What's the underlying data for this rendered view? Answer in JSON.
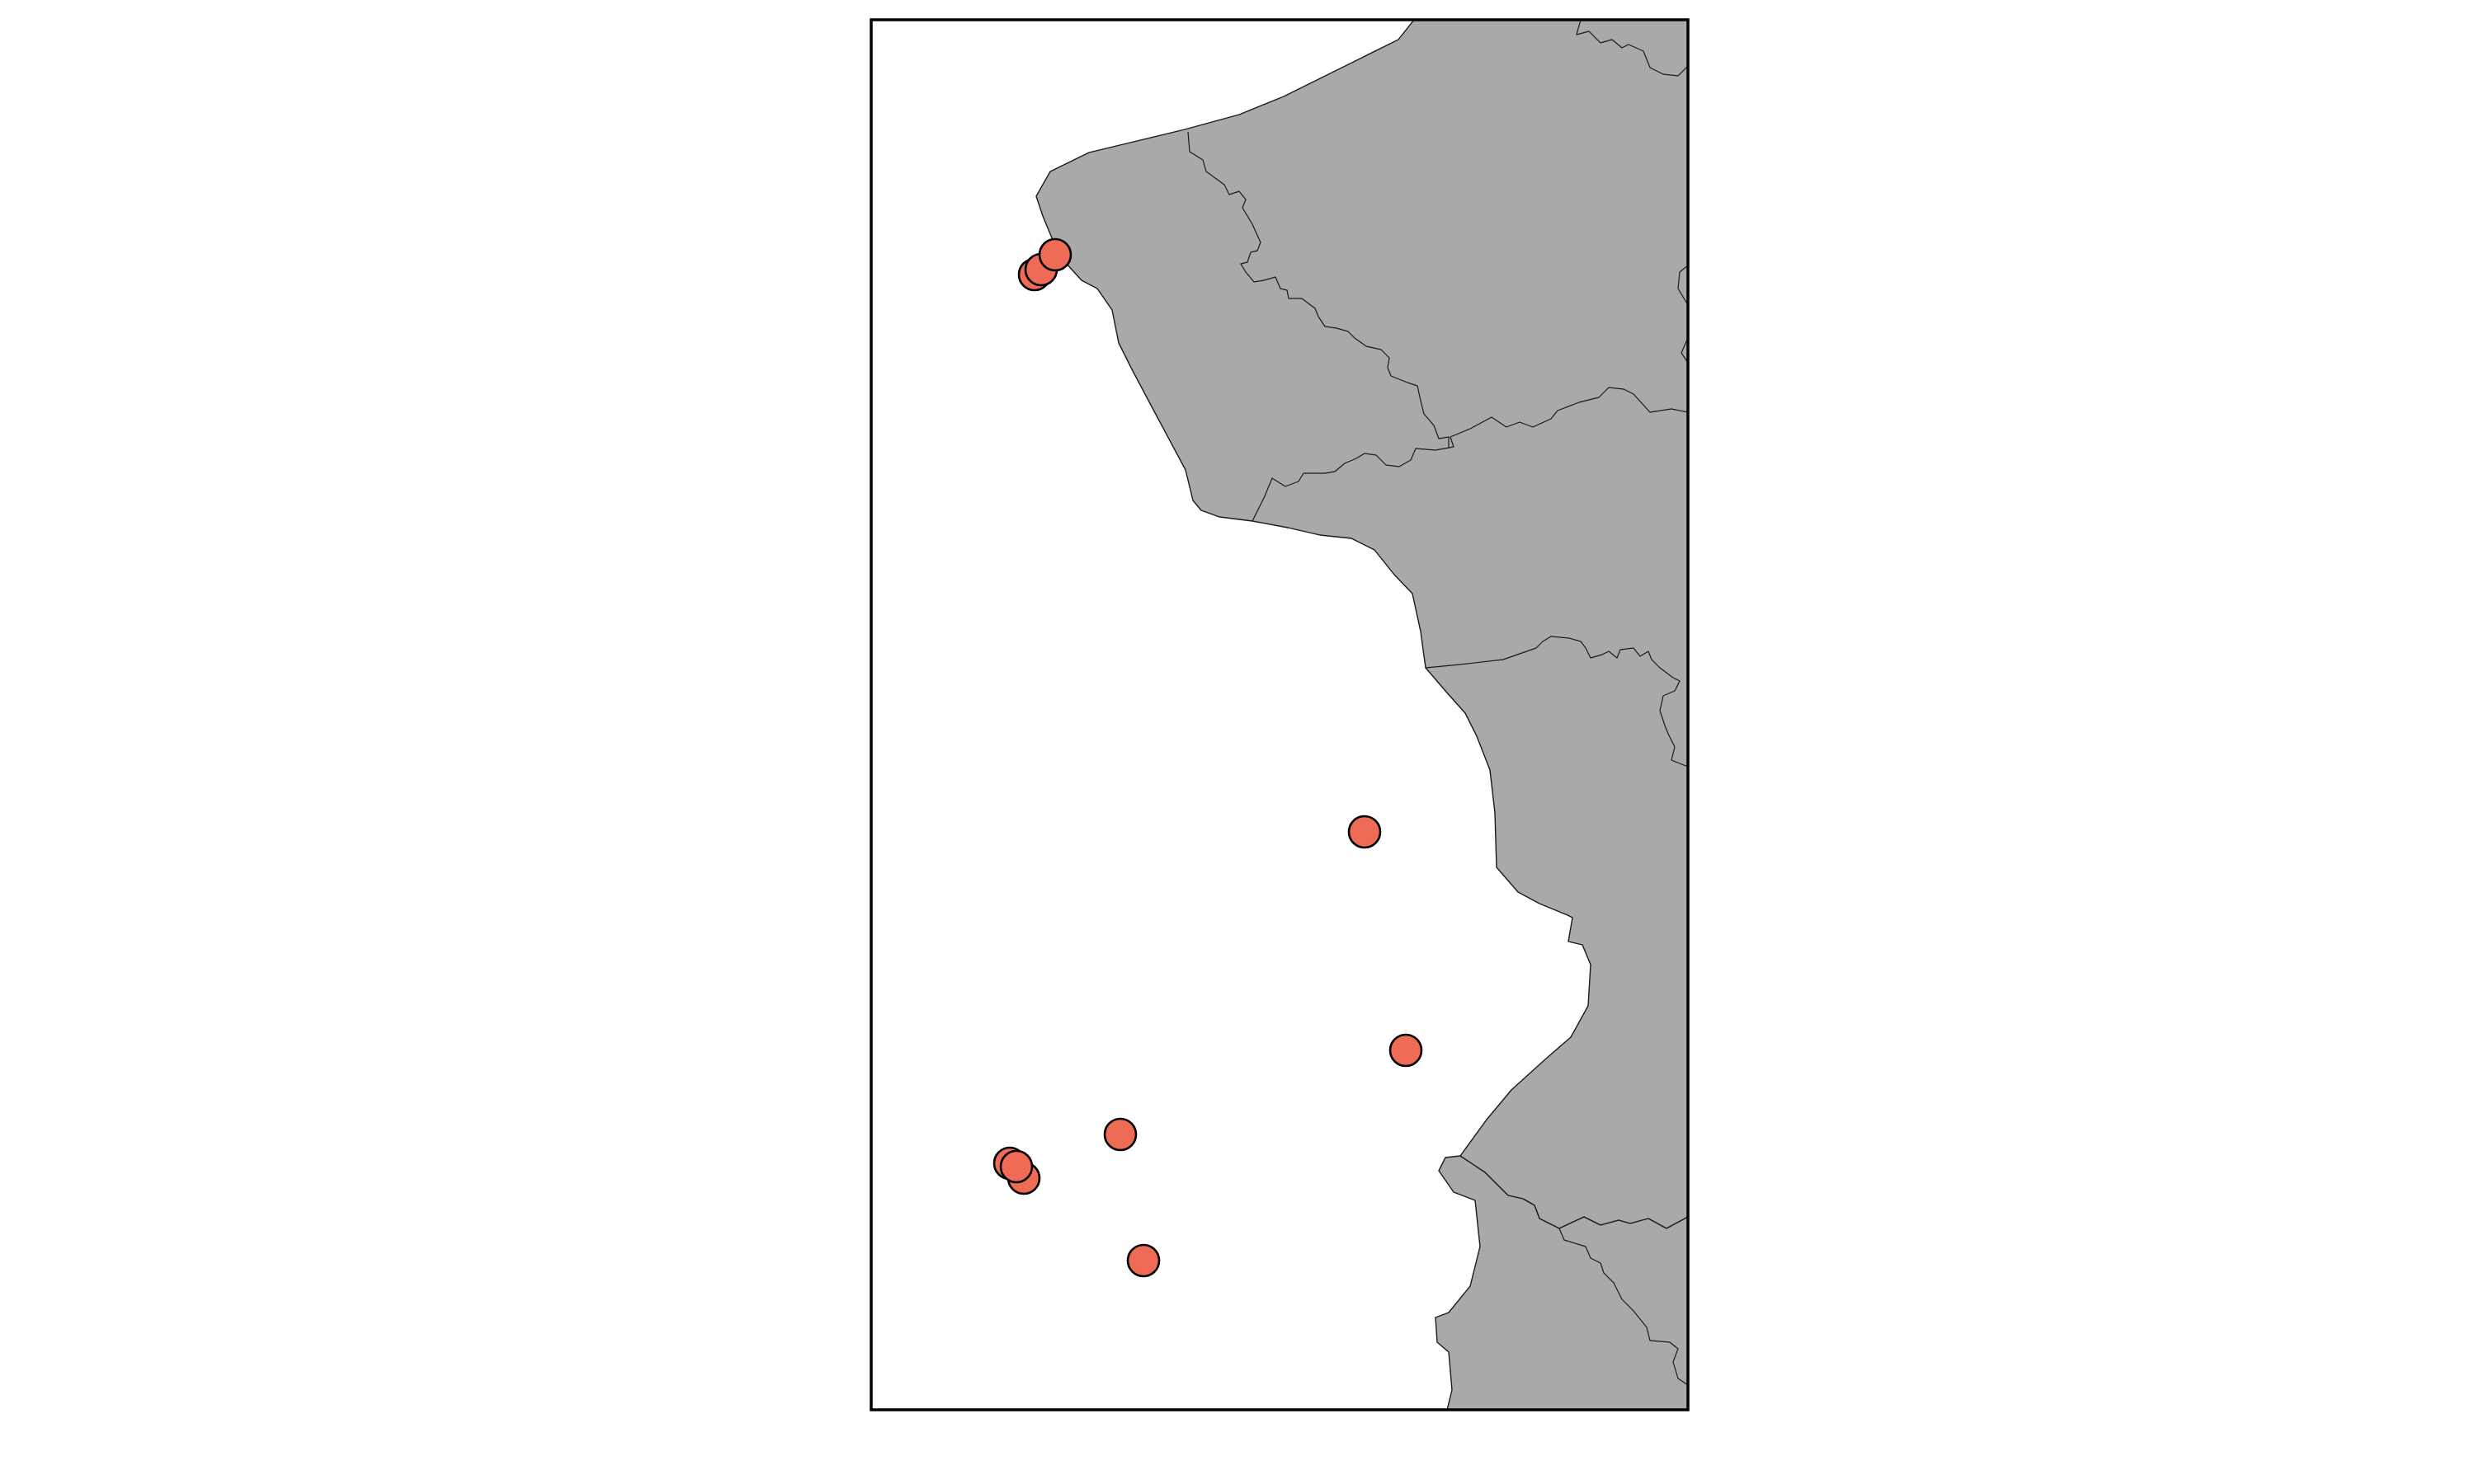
{
  "map": {
    "land_color": "#a9a9a9",
    "water_color": "#ffffff",
    "frame_color": "#000000",
    "marker_fill": "#ee6b55",
    "marker_edge": "#000000",
    "markers": [
      {
        "id": "north-1"
      },
      {
        "id": "north-2"
      },
      {
        "id": "north-3"
      },
      {
        "id": "central-1"
      },
      {
        "id": "central-2"
      },
      {
        "id": "south-1"
      },
      {
        "id": "south-2"
      },
      {
        "id": "south-3"
      },
      {
        "id": "south-4"
      },
      {
        "id": "south-5"
      }
    ]
  }
}
